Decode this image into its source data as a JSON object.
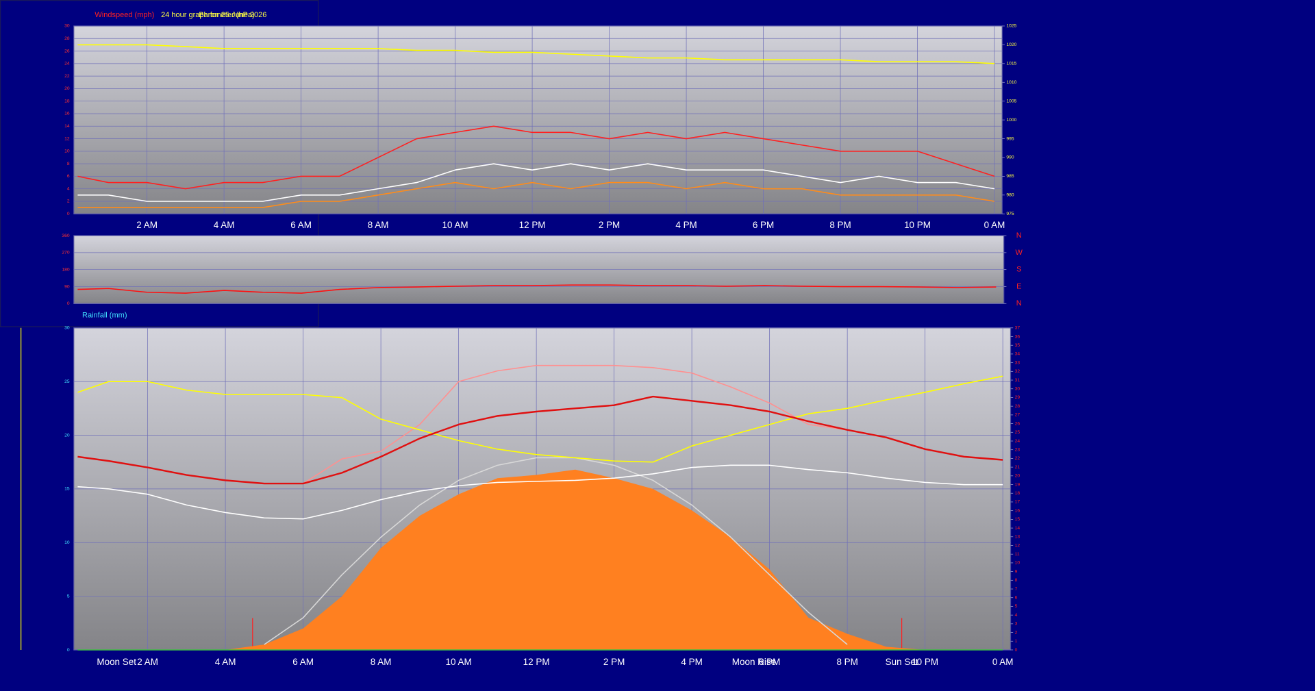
{
  "chart_data": [
    {
      "type": "line",
      "title": "24 hour graph for 25 June 2026",
      "y_label": "Windspeed (mph)",
      "y2_label": "Barometer (hPa)",
      "x": [
        0.2,
        1,
        2,
        3,
        4,
        5,
        6,
        7,
        8,
        9,
        10,
        11,
        12,
        13,
        14,
        15,
        16,
        17,
        18,
        19,
        20,
        21,
        22,
        23,
        24
      ],
      "xlim": [
        0.1,
        24.2
      ],
      "xticks": [
        {
          "value": 2,
          "label": "2 AM"
        },
        {
          "value": 4,
          "label": "4 AM"
        },
        {
          "value": 6,
          "label": "6 AM"
        },
        {
          "value": 8,
          "label": "8 AM"
        },
        {
          "value": 10,
          "label": "10 AM"
        },
        {
          "value": 12,
          "label": "12 PM"
        },
        {
          "value": 14,
          "label": "2 PM"
        },
        {
          "value": 16,
          "label": "4 PM"
        },
        {
          "value": 18,
          "label": "6 PM"
        },
        {
          "value": 20,
          "label": "8 PM"
        },
        {
          "value": 22,
          "label": "10 PM"
        },
        {
          "value": 24,
          "label": "0 AM"
        }
      ],
      "ylim": [
        0,
        30
      ],
      "yticks": [
        0,
        2,
        4,
        6,
        8,
        10,
        12,
        14,
        16,
        18,
        20,
        22,
        24,
        26,
        28,
        30
      ],
      "ytick_color": "#ff3030",
      "y2lim": [
        975,
        1025
      ],
      "y2ticks": [
        975,
        980,
        985,
        990,
        995,
        1000,
        1005,
        1010,
        1015,
        1020,
        1025
      ],
      "y2tick_color": "#ffff40",
      "grid": true,
      "series": [
        {
          "color": "#ff2020",
          "values": [
            6,
            5,
            5,
            4,
            5,
            5,
            6,
            6,
            9,
            12,
            13,
            14,
            13,
            13,
            12,
            13,
            12,
            13,
            12,
            11,
            10,
            10,
            10,
            8,
            6
          ]
        },
        {
          "color": "#ff8c1a",
          "values": [
            1,
            1,
            1,
            1,
            1,
            1,
            2,
            2,
            3,
            4,
            5,
            4,
            5,
            4,
            5,
            5,
            4,
            5,
            4,
            4,
            3,
            3,
            3,
            3,
            2
          ]
        },
        {
          "color": "#ffffff",
          "values": [
            3,
            3,
            2,
            2,
            2,
            2,
            3,
            3,
            4,
            5,
            7,
            8,
            7,
            8,
            7,
            8,
            7,
            7,
            7,
            6,
            5,
            6,
            5,
            5,
            4
          ]
        },
        {
          "color": "#ffff00",
          "axis": "y2",
          "values": [
            1020,
            1020,
            1020,
            1019.5,
            1019,
            1019,
            1019,
            1019,
            1019,
            1018.5,
            1018.5,
            1018,
            1018,
            1017.5,
            1017,
            1016.5,
            1016.5,
            1016,
            1016,
            1016,
            1016,
            1015.5,
            1015.5,
            1015.5,
            1015
          ]
        }
      ]
    },
    {
      "type": "line",
      "x": [
        0.2,
        1,
        2,
        3,
        4,
        5,
        6,
        7,
        8,
        9,
        10,
        11,
        12,
        13,
        14,
        15,
        16,
        17,
        18,
        19,
        20,
        21,
        22,
        23,
        24
      ],
      "xlim": [
        0.1,
        24.2
      ],
      "ylim": [
        0,
        360
      ],
      "yticks": [
        0,
        90,
        180,
        270,
        360
      ],
      "ytick_color": "#ff3030",
      "y2lim": [
        0,
        360
      ],
      "y2ticks": [
        {
          "value": 0,
          "label": "N"
        },
        {
          "value": 90,
          "label": "E"
        },
        {
          "value": 180,
          "label": "S"
        },
        {
          "value": 270,
          "label": "W"
        },
        {
          "value": 360,
          "label": "N"
        }
      ],
      "y2tick_color": "#ff2020",
      "grid": true,
      "series": [
        {
          "color": "#ff1010",
          "values": [
            75,
            80,
            60,
            55,
            70,
            60,
            55,
            75,
            85,
            88,
            92,
            95,
            95,
            98,
            98,
            95,
            95,
            92,
            95,
            92,
            90,
            90,
            88,
            85,
            88
          ]
        }
      ]
    },
    {
      "type": "line",
      "y_label": "Rainfall (mm)",
      "x": [
        0.2,
        1,
        2,
        3,
        4,
        5,
        6,
        7,
        8,
        9,
        10,
        11,
        12,
        13,
        14,
        15,
        16,
        17,
        18,
        19,
        20,
        21,
        22,
        23,
        24
      ],
      "xlim": [
        0.1,
        24.2
      ],
      "xticks": [
        {
          "value": 2,
          "label": "2 AM"
        },
        {
          "value": 4,
          "label": "4 AM"
        },
        {
          "value": 6,
          "label": "6 AM"
        },
        {
          "value": 8,
          "label": "8 AM"
        },
        {
          "value": 10,
          "label": "10 AM"
        },
        {
          "value": 12,
          "label": "12 PM"
        },
        {
          "value": 14,
          "label": "2 PM"
        },
        {
          "value": 16,
          "label": "4 PM"
        },
        {
          "value": 18,
          "label": "6 PM"
        },
        {
          "value": 20,
          "label": "8 PM"
        },
        {
          "value": 22,
          "label": "10 PM"
        },
        {
          "value": 24,
          "label": "0 AM"
        }
      ],
      "ylim": [
        0,
        30
      ],
      "yticks": [
        0,
        5,
        10,
        15,
        20,
        25,
        30
      ],
      "ytick_color": "#40e0ff",
      "y2lim": [
        0,
        37
      ],
      "y2ticks": [
        0,
        1,
        2,
        3,
        4,
        5,
        6,
        7,
        8,
        9,
        10,
        11,
        12,
        13,
        14,
        15,
        16,
        17,
        18,
        19,
        20,
        21,
        22,
        23,
        24,
        25,
        26,
        27,
        28,
        29,
        30,
        31,
        32,
        33,
        34,
        35,
        36,
        37
      ],
      "y2tick_color": "#ff2020",
      "grid": true,
      "events": [
        {
          "label": "Moon Set",
          "x": 1.2
        },
        {
          "label": "Moon Rise",
          "x": 17.6
        },
        {
          "label": "Sun Set",
          "x": 21.4
        }
      ],
      "markers": [
        4.7,
        21.4
      ],
      "marker_color": "#ff2020",
      "series": [
        {
          "color": "#ff8020",
          "style": "area",
          "values": [
            0,
            0,
            0,
            0,
            0,
            0.5,
            2,
            5,
            9.5,
            12.5,
            14.5,
            16,
            16.3,
            16.8,
            16,
            15,
            13,
            10.5,
            7.5,
            3,
            1.5,
            0.3,
            0,
            0,
            0
          ]
        },
        {
          "color": "#d8d8d8",
          "values": [
            null,
            null,
            null,
            null,
            null,
            0.5,
            3,
            7,
            10.5,
            13.5,
            15.8,
            17.2,
            17.9,
            17.9,
            17.2,
            15.8,
            13.5,
            10.5,
            7,
            3.5,
            0.5,
            null,
            null,
            null,
            null
          ]
        },
        {
          "color": "#40c040",
          "values": [
            0,
            0,
            0,
            0,
            0,
            0,
            0,
            0,
            0,
            0,
            0,
            0,
            0,
            0,
            0,
            0,
            0,
            0,
            0,
            0,
            0,
            0,
            0,
            0,
            0
          ]
        },
        {
          "color": "#ff9090",
          "values": [
            null,
            null,
            null,
            null,
            null,
            null,
            15.5,
            17.8,
            18.5,
            21,
            25,
            26,
            26.5,
            26.5,
            26.5,
            26.3,
            25.8,
            24.5,
            23,
            21,
            20.5,
            null,
            null,
            null,
            null
          ]
        },
        {
          "color": "#ffff00",
          "values": [
            24,
            25,
            25,
            24.2,
            23.8,
            23.8,
            23.8,
            23.5,
            21.5,
            20.5,
            19.5,
            18.7,
            18.2,
            17.9,
            17.6,
            17.5,
            19,
            20,
            21,
            22,
            22.5,
            23.3,
            24,
            24.8,
            25.5
          ]
        },
        {
          "color": "#ffffff",
          "values": [
            15.2,
            15,
            14.5,
            13.5,
            12.8,
            12.3,
            12.2,
            13,
            14,
            14.8,
            15.3,
            15.6,
            15.7,
            15.8,
            16,
            16.4,
            17,
            17.2,
            17.2,
            16.8,
            16.5,
            16,
            15.6,
            15.4,
            15.4
          ]
        },
        {
          "color": "#e01010",
          "width": 2,
          "values": [
            18,
            17.6,
            17,
            16.3,
            15.8,
            15.5,
            15.5,
            16.5,
            18,
            19.7,
            21,
            21.8,
            22.2,
            22.5,
            22.8,
            23.6,
            23.2,
            22.8,
            22.2,
            21.3,
            20.5,
            19.8,
            18.7,
            18,
            17.7
          ]
        }
      ]
    }
  ]
}
